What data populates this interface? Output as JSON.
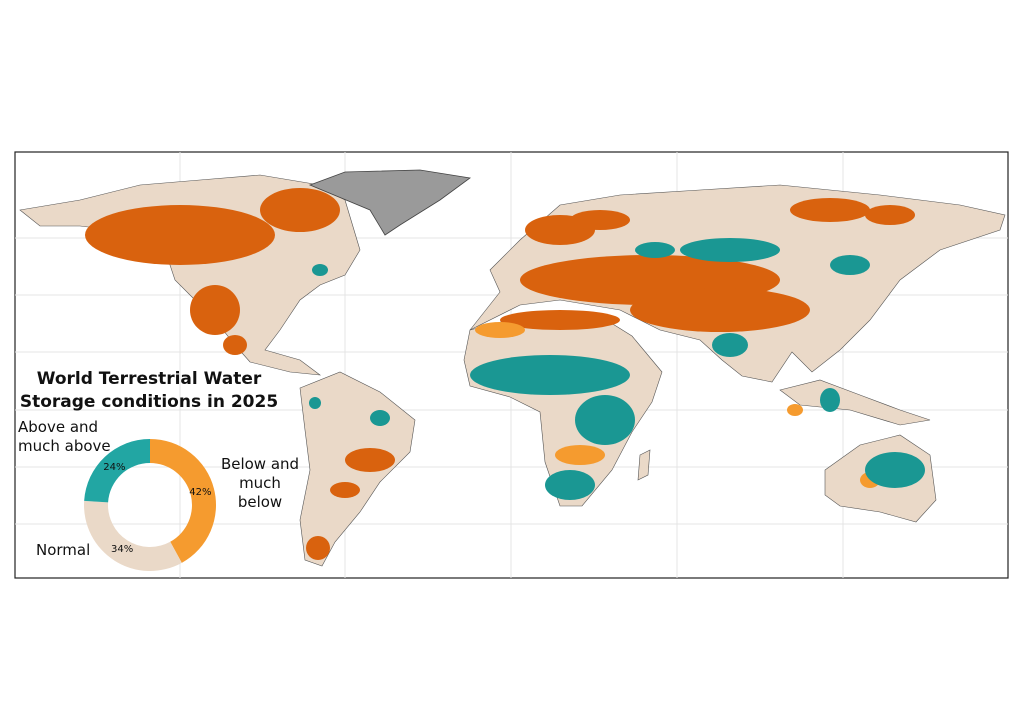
{
  "chart_data": {
    "type": "pie",
    "title": "World Terrestrial Water Storage conditions in 2025",
    "categories": [
      "Below and much below",
      "Normal",
      "Above and much above"
    ],
    "values": [
      42,
      34,
      24
    ],
    "value_labels": [
      "42%",
      "34%",
      "24%"
    ],
    "colors": [
      "#f59b2f",
      "#ead9c8",
      "#22a6a3"
    ],
    "donut": true
  }
}
